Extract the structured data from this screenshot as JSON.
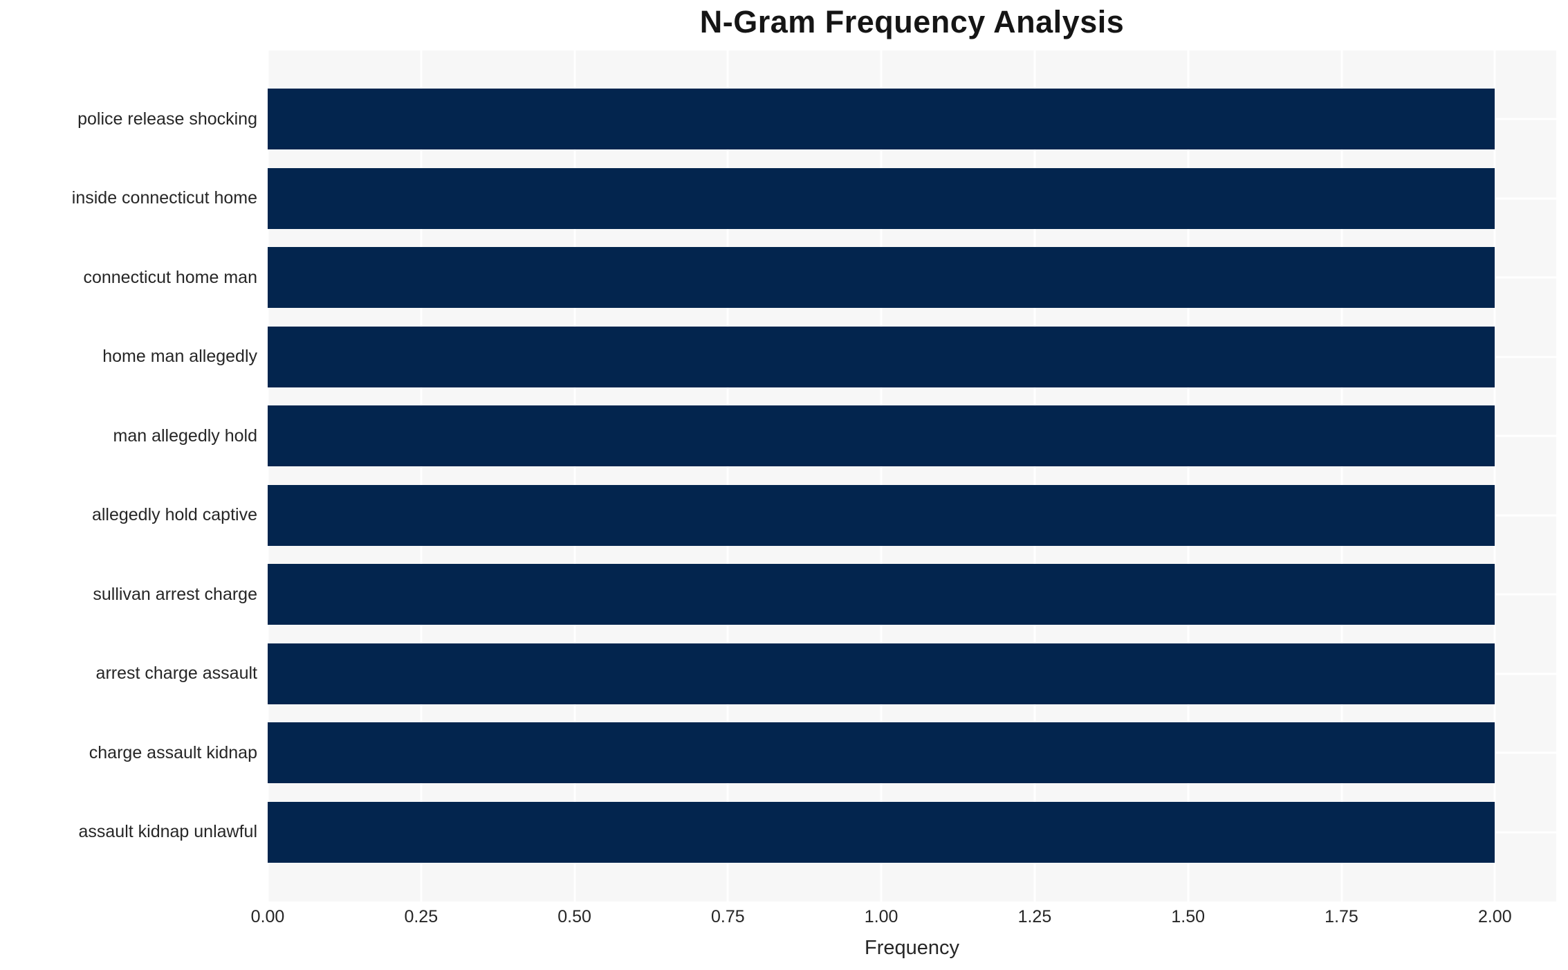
{
  "chart_data": {
    "type": "bar",
    "orientation": "horizontal",
    "title": "N-Gram Frequency Analysis",
    "xlabel": "Frequency",
    "ylabel": "",
    "categories": [
      "police release shocking",
      "inside connecticut home",
      "connecticut home man",
      "home man allegedly",
      "man allegedly hold",
      "allegedly hold captive",
      "sullivan arrest charge",
      "arrest charge assault",
      "charge assault kidnap",
      "assault kidnap unlawful"
    ],
    "values": [
      2,
      2,
      2,
      2,
      2,
      2,
      2,
      2,
      2,
      2
    ],
    "xlim": [
      0,
      2.1
    ],
    "xticks": [
      0.0,
      0.25,
      0.5,
      0.75,
      1.0,
      1.25,
      1.5,
      1.75,
      2.0
    ],
    "xtick_labels": [
      "0.00",
      "0.25",
      "0.50",
      "0.75",
      "1.00",
      "1.25",
      "1.50",
      "1.75",
      "2.00"
    ],
    "grid": true,
    "legend": null,
    "colors": {
      "bar": "#03254e",
      "plot_background": "#f7f7f7",
      "figure_background": "#ffffff",
      "gridline": "#ffffff",
      "text": "#262626"
    }
  }
}
